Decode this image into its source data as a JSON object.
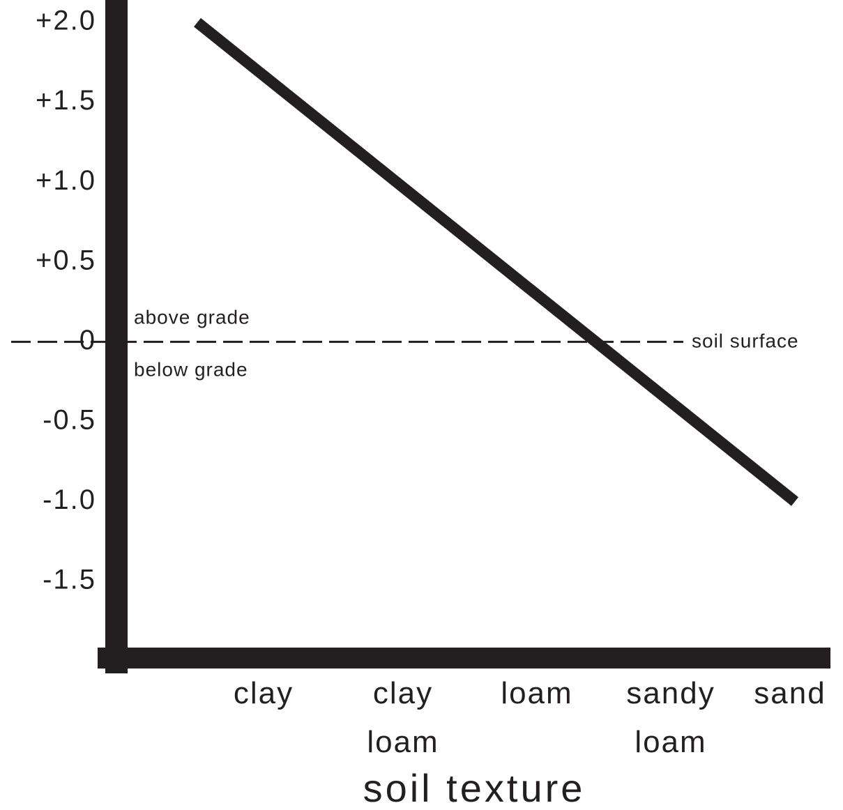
{
  "chart_data": {
    "type": "line",
    "categories": [
      "clay",
      "clay loam",
      "loam",
      "sandy loam",
      "sand"
    ],
    "values": [
      2.0,
      1.25,
      0.5,
      -0.25,
      -1.0
    ],
    "color": "#231f20",
    "xlabel": "soil texture",
    "ylim": [
      -1.98,
      2.14
    ],
    "yticks": [
      {
        "value": 2,
        "label": "+2.0"
      },
      {
        "value": 1.5,
        "label": "+1.5"
      },
      {
        "value": 1,
        "label": "+1.0"
      },
      {
        "value": 0.5,
        "label": "+0.5"
      },
      0,
      -0.5,
      {
        "value": -1,
        "label": "-1.0"
      },
      -1.5
    ],
    "grid": false,
    "annotations": {
      "reference": "soil surface",
      "above": "above grade",
      "below": "below grade"
    }
  }
}
